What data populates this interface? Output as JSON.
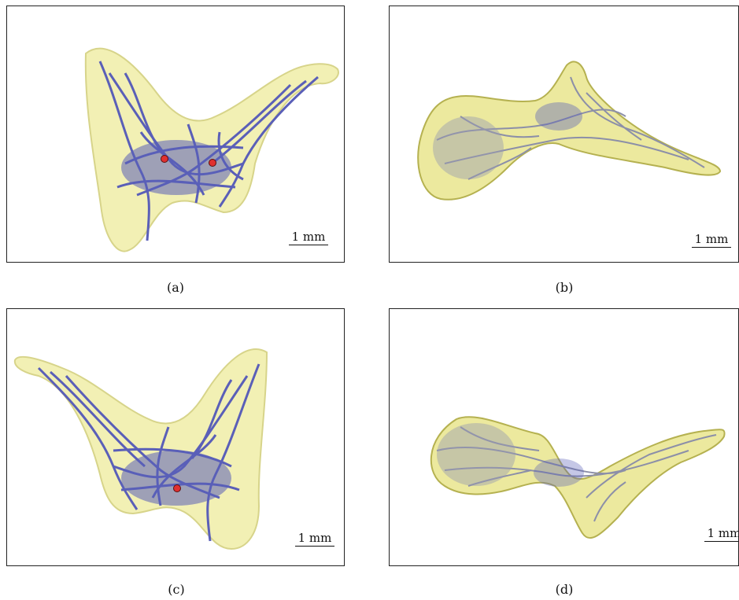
{
  "colors": {
    "shell": "#f2f0b4",
    "shell_edge": "#d7d48a",
    "shell_b": "#e6e27e",
    "network": "#5a5fb8",
    "network_gray": "#8c8fa8",
    "marker": "#e03030"
  },
  "panels": [
    {
      "id": "a",
      "caption": "(a)",
      "scale_label": "1 mm"
    },
    {
      "id": "b",
      "caption": "(b)",
      "scale_label": "1 mm"
    },
    {
      "id": "c",
      "caption": "(c)",
      "scale_label": "1 mm"
    },
    {
      "id": "d",
      "caption": "(d)",
      "scale_label": "1 mm"
    }
  ]
}
